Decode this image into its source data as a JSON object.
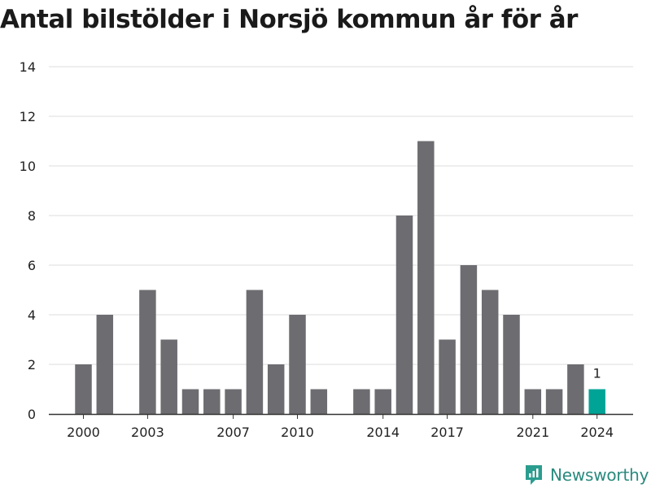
{
  "title": "Antal bilstölder i Norsjö kommun år för år",
  "brand": {
    "name": "Newsworthy",
    "icon": "newsworthy-logo-icon",
    "color": "#2a9d8f"
  },
  "colors": {
    "bar": "#6d6c71",
    "highlight": "#00a497",
    "grid": "#dddddd",
    "axis": "#333333"
  },
  "chart_data": {
    "type": "bar",
    "title": "Antal bilstölder i Norsjö kommun år för år",
    "xlabel": "",
    "ylabel": "",
    "x": [
      2000,
      2001,
      2002,
      2003,
      2004,
      2005,
      2006,
      2007,
      2008,
      2009,
      2010,
      2011,
      2012,
      2013,
      2014,
      2015,
      2016,
      2017,
      2018,
      2019,
      2020,
      2021,
      2022,
      2023,
      2024
    ],
    "values": [
      2,
      4,
      0,
      5,
      3,
      1,
      1,
      1,
      5,
      2,
      4,
      1,
      null,
      1,
      1,
      8,
      11,
      3,
      6,
      5,
      4,
      1,
      1,
      2,
      1
    ],
    "highlight_index": 24,
    "data_labels": [
      {
        "index": 24,
        "text": "1"
      }
    ],
    "x_ticks": [
      2000,
      2003,
      2007,
      2010,
      2014,
      2017,
      2021,
      2024
    ],
    "y_ticks": [
      0,
      2,
      4,
      6,
      8,
      10,
      12,
      14
    ],
    "ylim": [
      0,
      14
    ],
    "grid": true,
    "legend": "none"
  }
}
